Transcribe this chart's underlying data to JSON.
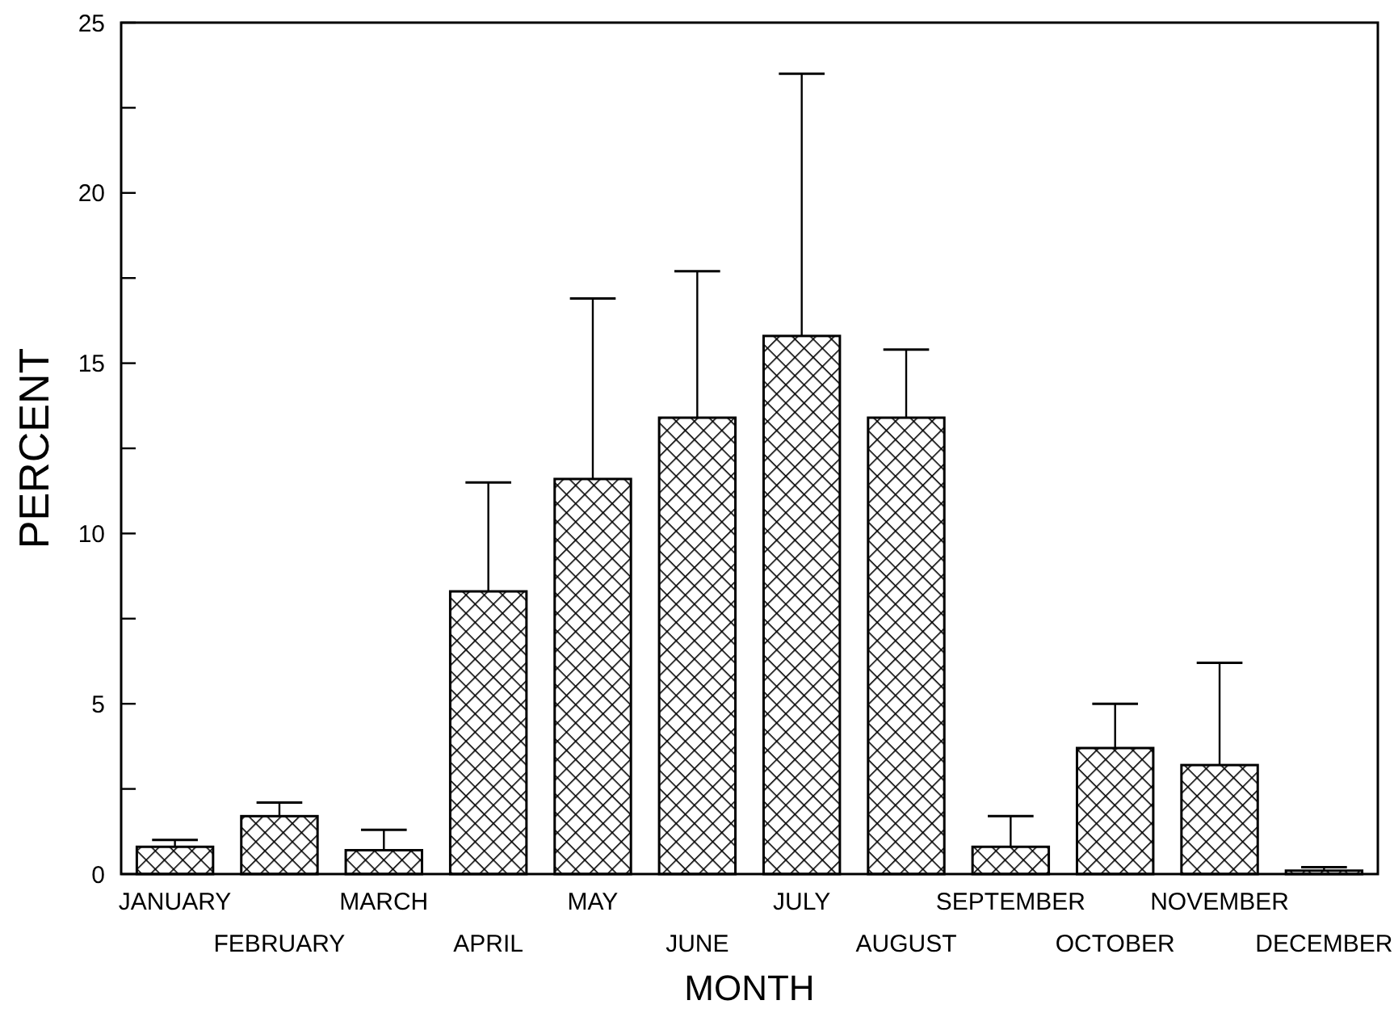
{
  "chart_data": {
    "type": "bar",
    "xlabel": "MONTH",
    "ylabel": "PERCENT",
    "categories": [
      "JANUARY",
      "FEBRUARY",
      "MARCH",
      "APRIL",
      "MAY",
      "JUNE",
      "JULY",
      "AUGUST",
      "SEPTEMBER",
      "OCTOBER",
      "NOVEMBER",
      "DECEMBER"
    ],
    "values": [
      0.8,
      1.7,
      0.7,
      8.3,
      11.6,
      13.4,
      15.8,
      13.4,
      0.8,
      3.7,
      3.2,
      0.1
    ],
    "errors": [
      [
        0.8,
        1.0
      ],
      [
        1.7,
        2.1
      ],
      [
        0.7,
        1.3
      ],
      [
        8.3,
        11.5
      ],
      [
        11.6,
        16.9
      ],
      [
        13.4,
        17.7
      ],
      [
        15.8,
        23.5
      ],
      [
        13.4,
        15.4
      ],
      [
        0.8,
        1.7
      ],
      [
        3.7,
        5.0
      ],
      [
        3.2,
        6.2
      ],
      [
        0.1,
        0.2
      ]
    ],
    "color": "#000000",
    "ylim": [
      0,
      25
    ],
    "yticks": [
      0,
      {
        "value": 2.5,
        "label": null
      },
      5,
      {
        "value": 7.5,
        "label": null
      },
      10,
      {
        "value": 12.5,
        "label": null
      },
      15,
      {
        "value": 17.5,
        "label": null
      },
      20,
      {
        "value": 22.5,
        "label": null
      },
      25
    ],
    "grid": false
  }
}
